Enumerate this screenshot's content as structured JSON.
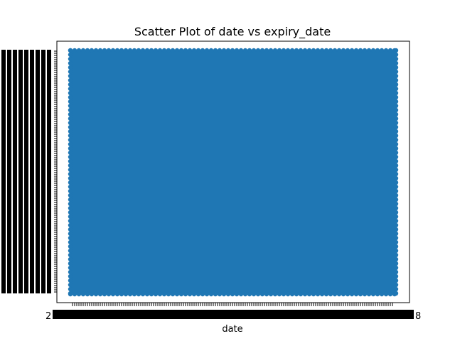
{
  "chart_data": {
    "type": "scatter",
    "title": "Scatter Plot of date vs expiry_date",
    "xlabel": "date",
    "ylabel": "",
    "color": "#1f77b4",
    "point_color": "#1f77b4",
    "grid": false,
    "legend": "none",
    "x_tick_labels_visible": [
      "2",
      "8"
    ],
    "series": [
      {
        "coverage": "points densely fill the full plotting area; individual dates and expiry_dates are not legible",
        "x_range_desc": "all x tick positions",
        "y_range_desc": "all y tick positions"
      }
    ]
  }
}
